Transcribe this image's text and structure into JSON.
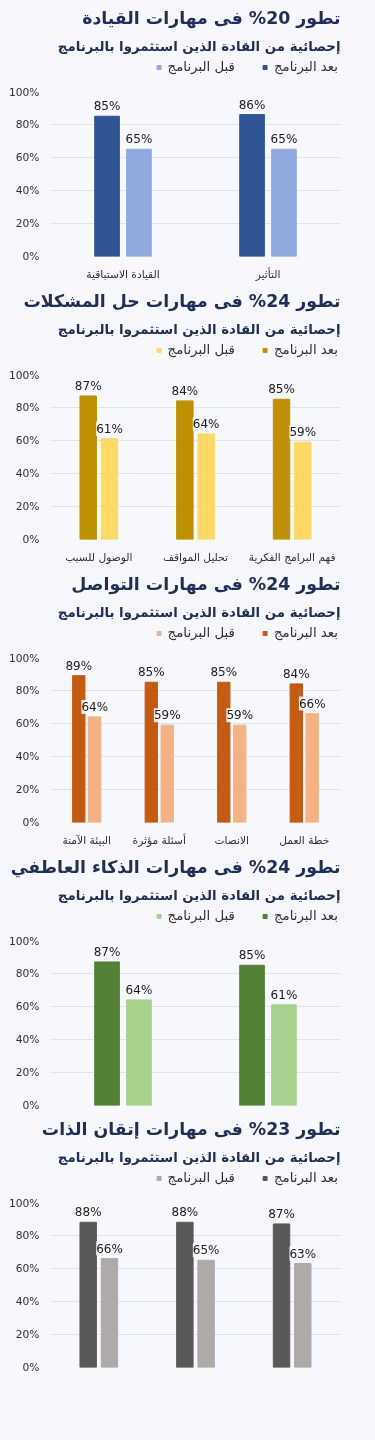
{
  "chart_data": [
    {
      "type": "bar",
      "title": "تطور 20% فى مهارات القيادة",
      "subtitle": "إحصائية من القادة الذين استثمروا بالبرنامج",
      "categories": [
        "القيادة الاستباقية",
        "التأثير"
      ],
      "series": [
        {
          "name": "بعد البرنامج",
          "color": "#2f5597",
          "values": [
            85,
            86
          ],
          "value_labels": [
            "85%",
            "86%"
          ]
        },
        {
          "name": "قبل البرنامج",
          "color": "#8faadc",
          "values": [
            65,
            65
          ],
          "value_labels": [
            "65%",
            "65%"
          ]
        }
      ],
      "ylim": [
        0,
        100
      ],
      "yticks": [
        {
          "value": 0,
          "label": "0%"
        },
        {
          "value": 20,
          "label": "20%"
        },
        {
          "value": 40,
          "label": "40%"
        },
        {
          "value": 60,
          "label": "60%"
        },
        {
          "value": 80,
          "label": "80%"
        },
        {
          "value": 100,
          "label": "100%"
        }
      ],
      "grid": "y",
      "legend": "top right"
    },
    {
      "type": "bar",
      "title": "تطور 24% فى مهارات حل المشكلات",
      "subtitle": "إحصائية من القادة الذين استثمروا بالبرنامج",
      "categories": [
        "الوصول للسبب",
        "تحليل المواقف",
        "فهم البرامج الفكرية"
      ],
      "series": [
        {
          "name": "بعد البرنامج",
          "color": "#bf9000",
          "values": [
            87,
            84,
            85
          ],
          "value_labels": [
            "87%",
            "84%",
            "85%"
          ]
        },
        {
          "name": "قبل البرنامج",
          "color": "#ffd966",
          "values": [
            61,
            64,
            59
          ],
          "value_labels": [
            "61%",
            "64%",
            "59%"
          ]
        }
      ],
      "ylim": [
        0,
        100
      ],
      "yticks": [
        {
          "value": 0,
          "label": "0%"
        },
        {
          "value": 20,
          "label": "20%"
        },
        {
          "value": 40,
          "label": "40%"
        },
        {
          "value": 60,
          "label": "60%"
        },
        {
          "value": 80,
          "label": "80%"
        },
        {
          "value": 100,
          "label": "100%"
        }
      ],
      "grid": "y",
      "legend": "top right"
    },
    {
      "type": "bar",
      "title": "تطور 24% فى مهارات التواصل",
      "subtitle": "إحصائية من القادة الذين استثمروا بالبرنامج",
      "categories": [
        "البيئة الآمنة",
        "أسئلة مؤثرة",
        "الانصات",
        "خطة العمل"
      ],
      "series": [
        {
          "name": "بعد البرنامج",
          "color": "#c55a11",
          "values": [
            89,
            85,
            85,
            84
          ],
          "value_labels": [
            "89%",
            "85%",
            "85%",
            "84%"
          ]
        },
        {
          "name": "قبل البرنامج",
          "color": "#f4b183",
          "values": [
            64,
            59,
            59,
            66
          ],
          "value_labels": [
            "64%",
            "59%",
            "59%",
            "66%"
          ]
        }
      ],
      "ylim": [
        0,
        100
      ],
      "yticks": [
        {
          "value": 0,
          "label": "0%"
        },
        {
          "value": 20,
          "label": "20%"
        },
        {
          "value": 40,
          "label": "40%"
        },
        {
          "value": 60,
          "label": "60%"
        },
        {
          "value": 80,
          "label": "80%"
        },
        {
          "value": 100,
          "label": "100%"
        }
      ],
      "grid": "y",
      "legend": "top right"
    },
    {
      "type": "bar",
      "title": "تطور 24% فى مهارات الذكاء العاطفي",
      "subtitle": "إحصائية من القادة الذين استثمروا بالبرنامج",
      "categories": [
        null,
        null
      ],
      "series": [
        {
          "name": "بعد البرنامج",
          "color": "#538135",
          "values": [
            87,
            85
          ],
          "value_labels": [
            "87%",
            "85%"
          ]
        },
        {
          "name": "قبل البرنامج",
          "color": "#a9d18e",
          "values": [
            64,
            61
          ],
          "value_labels": [
            "64%",
            "61%"
          ]
        }
      ],
      "ylim": [
        0,
        100
      ],
      "yticks": [
        {
          "value": 0,
          "label": "0%"
        },
        {
          "value": 20,
          "label": "20%"
        },
        {
          "value": 40,
          "label": "40%"
        },
        {
          "value": 60,
          "label": "60%"
        },
        {
          "value": 80,
          "label": "80%"
        },
        {
          "value": 100,
          "label": "100%"
        }
      ],
      "grid": "y",
      "legend": "top right",
      "tick_labels": "y"
    },
    {
      "type": "bar",
      "title": "تطور 23% فى مهارات إتقان الذات",
      "subtitle": "إحصائية من القادة الذين استثمروا بالبرنامج",
      "categories": [
        null,
        null,
        null
      ],
      "series": [
        {
          "name": "بعد البرنامج",
          "color": "#595959",
          "values": [
            88,
            88,
            87
          ],
          "value_labels": [
            "88%",
            "88%",
            "87%"
          ]
        },
        {
          "name": "قبل البرنامج",
          "color": "#aeaaaa",
          "values": [
            66,
            65,
            63
          ],
          "value_labels": [
            "66%",
            "65%",
            "63%"
          ]
        }
      ],
      "ylim": [
        0,
        100
      ],
      "yticks": [
        {
          "value": 0,
          "label": "0%"
        },
        {
          "value": 20,
          "label": "20%"
        },
        {
          "value": 40,
          "label": "40%"
        },
        {
          "value": 60,
          "label": "60%"
        },
        {
          "value": 80,
          "label": "80%"
        },
        {
          "value": 100,
          "label": "100%"
        }
      ],
      "grid": "y",
      "legend": "top right",
      "tick_labels": "y"
    }
  ]
}
